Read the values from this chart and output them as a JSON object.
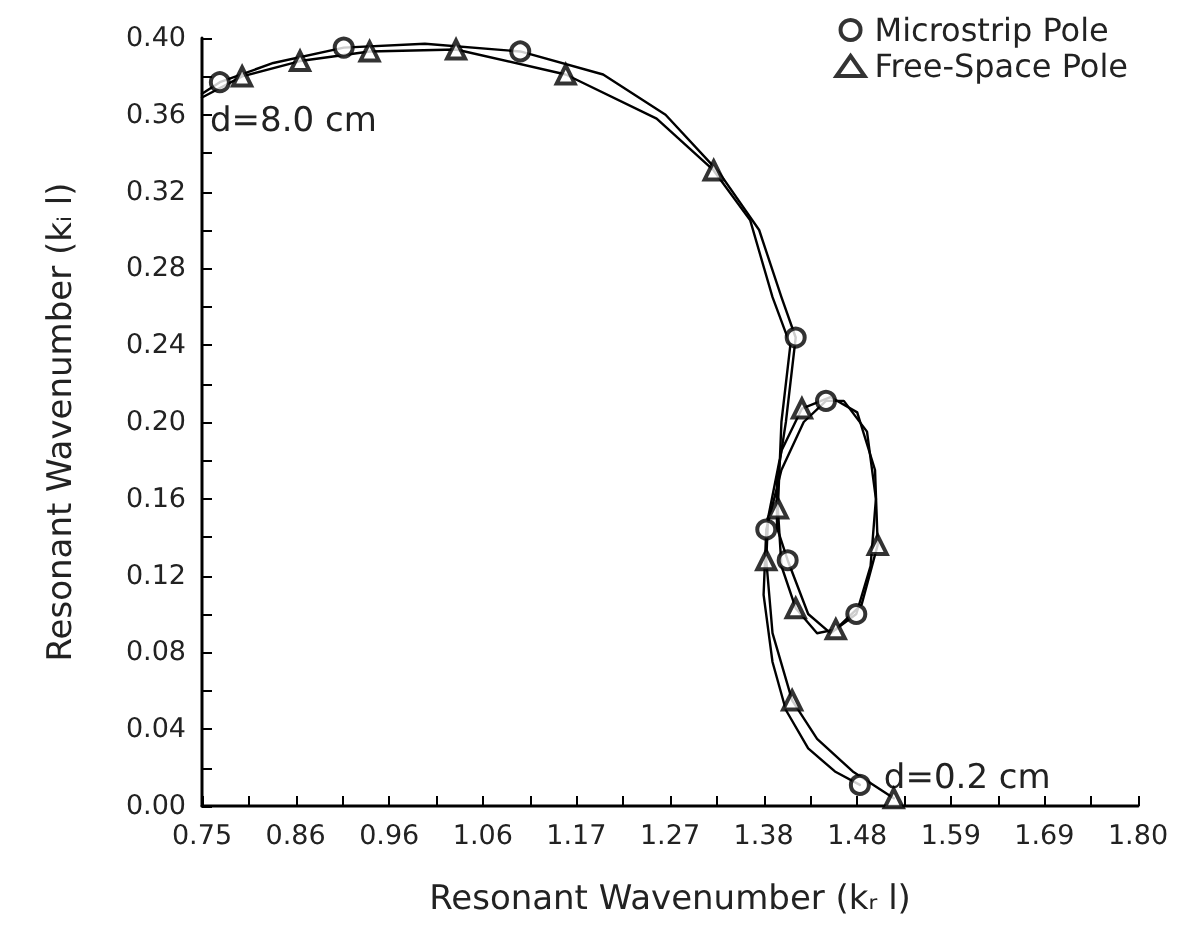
{
  "chart_data": {
    "type": "line",
    "xlabel": "Resonant Wavenumber (kᵣ l)",
    "ylabel": "Resonant Wavenumber (kᵢ l)",
    "xlim": [
      0.75,
      1.8
    ],
    "ylim": [
      0,
      0.4
    ],
    "xticks": [
      {
        "value": 0.75,
        "label": "0.75"
      },
      {
        "value": 0.8025,
        "label": null
      },
      {
        "value": 0.855,
        "label": "0.86"
      },
      {
        "value": 0.9075,
        "label": null
      },
      {
        "value": 0.96,
        "label": "0.96"
      },
      {
        "value": 1.0125,
        "label": null
      },
      {
        "value": 1.065,
        "label": "1.06"
      },
      {
        "value": 1.1175,
        "label": null
      },
      {
        "value": 1.17,
        "label": "1.17"
      },
      {
        "value": 1.2225,
        "label": null
      },
      {
        "value": 1.275,
        "label": "1.27"
      },
      {
        "value": 1.3275,
        "label": null
      },
      {
        "value": 1.38,
        "label": "1.38"
      },
      {
        "value": 1.4325,
        "label": null
      },
      {
        "value": 1.485,
        "label": "1.48"
      },
      {
        "value": 1.5375,
        "label": null
      },
      {
        "value": 1.59,
        "label": "1.59"
      },
      {
        "value": 1.6425,
        "label": null
      },
      {
        "value": 1.695,
        "label": "1.69"
      },
      {
        "value": 1.7475,
        "label": null
      },
      {
        "value": 1.8,
        "label": "1.80"
      }
    ],
    "yticks": [
      {
        "value": 0,
        "label": "0.00"
      },
      {
        "value": 0.02,
        "label": null
      },
      {
        "value": 0.04,
        "label": "0.04"
      },
      {
        "value": 0.06,
        "label": null
      },
      {
        "value": 0.08,
        "label": "0.08"
      },
      {
        "value": 0.1,
        "label": null
      },
      {
        "value": 0.12,
        "label": "0.12"
      },
      {
        "value": 0.14,
        "label": null
      },
      {
        "value": 0.16,
        "label": "0.16"
      },
      {
        "value": 0.18,
        "label": null
      },
      {
        "value": 0.2,
        "label": "0.20"
      },
      {
        "value": 0.22,
        "label": null
      },
      {
        "value": 0.24,
        "label": "0.24"
      },
      {
        "value": 0.26,
        "label": null
      },
      {
        "value": 0.28,
        "label": "0.28"
      },
      {
        "value": 0.3,
        "label": null
      },
      {
        "value": 0.32,
        "label": "0.32"
      },
      {
        "value": 0.34,
        "label": null
      },
      {
        "value": 0.36,
        "label": "0.36"
      },
      {
        "value": 0.38,
        "label": null
      },
      {
        "value": 0.4,
        "label": "0.40"
      }
    ],
    "grid": false,
    "legend": "top right",
    "series": [
      {
        "marker": "none",
        "color": "#000000",
        "x": [
          0.75,
          0.77,
          0.83,
          0.909,
          1.0,
          1.107,
          1.2,
          1.27,
          1.33,
          1.375,
          1.4,
          1.416,
          1.405,
          1.395,
          1.395,
          1.407,
          1.43,
          1.455,
          1.484,
          1.5,
          1.506,
          1.496,
          1.47,
          1.45,
          1.425,
          1.4,
          1.383,
          1.38,
          1.39,
          1.405,
          1.43,
          1.46,
          1.488
        ],
        "values": [
          0.371,
          0.377,
          0.387,
          0.395,
          0.397,
          0.393,
          0.381,
          0.36,
          0.33,
          0.3,
          0.265,
          0.244,
          0.2,
          0.17,
          0.145,
          0.128,
          0.1,
          0.09,
          0.1,
          0.125,
          0.16,
          0.195,
          0.211,
          0.211,
          0.2,
          0.175,
          0.144,
          0.11,
          0.075,
          0.05,
          0.03,
          0.018,
          0.011
        ]
      },
      {
        "marker": "none",
        "color": "#000000",
        "x": [
          0.75,
          0.795,
          0.86,
          0.938,
          1.035,
          1.158,
          1.26,
          1.324,
          1.365,
          1.39,
          1.41,
          1.4,
          1.396,
          1.4,
          1.416,
          1.44,
          1.461,
          1.49,
          1.508,
          1.505,
          1.485,
          1.455,
          1.423,
          1.4,
          1.385,
          1.383,
          1.39,
          1.412,
          1.44,
          1.48,
          1.526
        ],
        "values": [
          0.369,
          0.38,
          0.388,
          0.393,
          0.394,
          0.381,
          0.358,
          0.331,
          0.305,
          0.265,
          0.24,
          0.2,
          0.155,
          0.125,
          0.103,
          0.09,
          0.092,
          0.105,
          0.136,
          0.175,
          0.205,
          0.213,
          0.207,
          0.185,
          0.15,
          0.128,
          0.09,
          0.055,
          0.035,
          0.018,
          0.004
        ]
      },
      {
        "type": "scatter",
        "name": "Microstrip Pole",
        "marker": "circle",
        "color": "#000000",
        "x": [
          0.77,
          0.909,
          1.107,
          1.416,
          1.45,
          1.383,
          1.407,
          1.484,
          1.488
        ],
        "values": [
          0.377,
          0.395,
          0.393,
          0.244,
          0.211,
          0.144,
          0.128,
          0.1,
          0.011
        ]
      },
      {
        "type": "scatter",
        "name": "Free-Space Pole",
        "marker": "triangle",
        "color": "#000000",
        "x": [
          0.795,
          0.86,
          0.938,
          1.035,
          1.158,
          1.324,
          1.423,
          1.396,
          1.383,
          1.508,
          1.416,
          1.461,
          1.412,
          1.526
        ],
        "values": [
          0.38,
          0.388,
          0.393,
          0.394,
          0.381,
          0.331,
          0.207,
          0.155,
          0.128,
          0.136,
          0.103,
          0.092,
          0.055,
          0.004
        ]
      }
    ],
    "annotations": [
      {
        "text": "d=8.0 cm",
        "x": 0.75,
        "y": 0.37
      },
      {
        "text": "d=0.2 cm",
        "x": 1.488,
        "y": 0.011
      }
    ]
  }
}
